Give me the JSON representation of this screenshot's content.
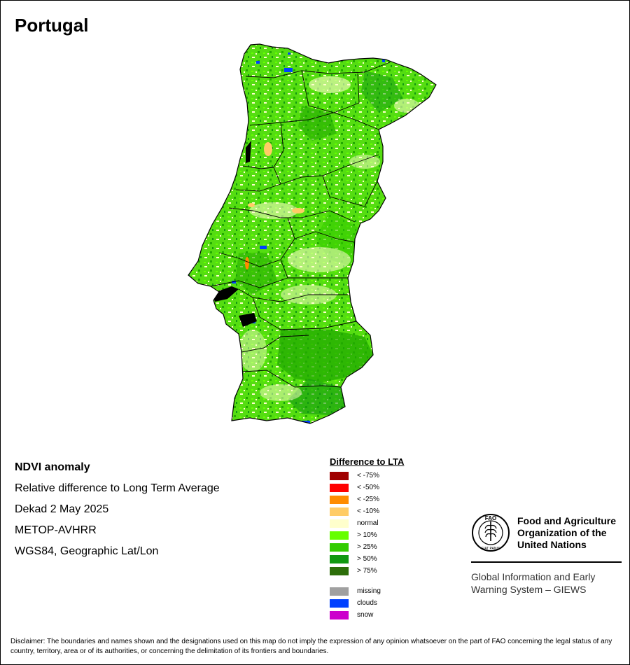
{
  "map": {
    "title": "Portugal"
  },
  "info": {
    "heading": "NDVI anomaly",
    "lines": [
      "Relative difference to Long Term Average",
      "Dekad 2 May 2025",
      "METOP-AVHRR",
      "WGS84, Geographic Lat/Lon"
    ]
  },
  "legend": {
    "title": "Difference to LTA",
    "items": [
      {
        "label": "< -75%",
        "color": "#a00000"
      },
      {
        "label": "< -50%",
        "color": "#ff0000"
      },
      {
        "label": "< -25%",
        "color": "#ff8c00"
      },
      {
        "label": "< -10%",
        "color": "#ffcc66"
      },
      {
        "label": "normal",
        "color": "#ffffcc"
      },
      {
        "label": "> 10%",
        "color": "#66ff00"
      },
      {
        "label": "> 25%",
        "color": "#33cc00"
      },
      {
        "label": "> 50%",
        "color": "#119911"
      },
      {
        "label": "> 75%",
        "color": "#2d6e0a"
      }
    ],
    "extra": [
      {
        "label": "missing",
        "color": "#a0a0a0"
      },
      {
        "label": "clouds",
        "color": "#0040ff"
      },
      {
        "label": "snow",
        "color": "#cc00cc"
      }
    ]
  },
  "org": {
    "name_lines": [
      "Food and Agriculture",
      "Organization of the",
      "United Nations"
    ],
    "logo_letters": "FAO",
    "logo_motto": "FIAT PANIS",
    "system_lines": [
      "Global Information and Early",
      "Warning System – GIEWS"
    ]
  },
  "disclaimer": "Disclaimer: The boundaries and names shown and the designations used on this map do not imply the expression of any opinion whatsoever on the part of FAO concerning the legal status of any country, territory, area or of its authorities, or concerning the delimitation of its frontiers and boundaries."
}
